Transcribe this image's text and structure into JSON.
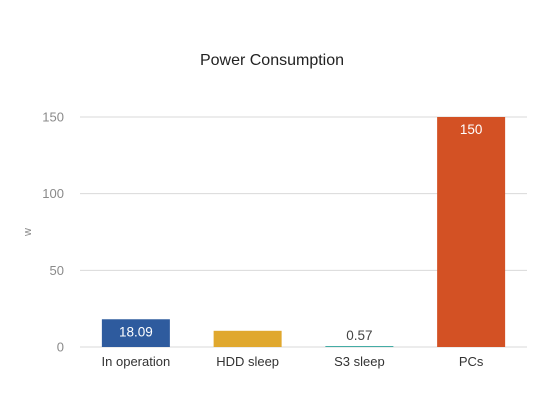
{
  "chart_data": {
    "type": "bar",
    "title": "Power Consumption",
    "ylabel": "w",
    "xlabel": "",
    "categories": [
      "In operation",
      "HDD sleep",
      "S3 sleep",
      "PCs"
    ],
    "values": [
      18.09,
      10.56,
      0.57,
      150
    ],
    "value_labels": [
      "18.09",
      "10.56",
      "0.57",
      "150"
    ],
    "ylim": [
      0,
      150
    ],
    "yticks": [
      0,
      50,
      100,
      150
    ],
    "ytick_labels": [
      "0",
      "50",
      "100",
      "150"
    ],
    "grid": true,
    "legend": "none",
    "bar_colors": [
      "#2E5B9E",
      "#E0A82E",
      "#2AA198",
      "#D35124"
    ],
    "label_colors": [
      "#ffffff",
      "#ffffff",
      "#444444",
      "#ffffff"
    ],
    "gridline_color": "#d9d9d9"
  }
}
